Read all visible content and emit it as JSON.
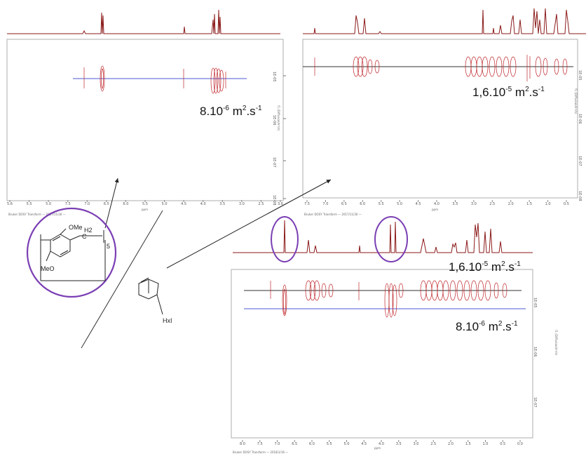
{
  "chart_data": [
    {
      "type": "2D DOSY NMR spectrum",
      "panel": "top-left",
      "xaxis": {
        "label": "ppm",
        "ticks": [
          "5.6",
          "5.5",
          "5.0",
          "7.5",
          "7.0",
          "6.5",
          "6.0",
          "5.5",
          "5.0",
          "4.5",
          "4.0",
          "3.5",
          "3.0",
          "2.5",
          "3.6"
        ]
      },
      "yaxis": {
        "label": "f1 (Diffusion/m²/s)",
        "ticks": [
          "1E-05",
          "1E-06",
          "1E-07",
          "1E-08"
        ]
      },
      "footer": "Bruker DOSY Transform — 2017/11/30 —",
      "annotation": {
        "mantissa": "8.10",
        "exp": "-6",
        "unit": " m",
        "unit_exp": "2",
        "tail": ".s",
        "tail_exp": "-1"
      }
    },
    {
      "type": "2D DOSY NMR spectrum",
      "panel": "top-right",
      "xaxis": {
        "label": "ppm",
        "ticks": [
          "7.5",
          "7.0",
          "6.5",
          "6.0",
          "5.5",
          "5.0",
          "4.5",
          "4.0",
          "3.5",
          "3.0",
          "2.5",
          "2.0",
          "1.5",
          "1.0",
          "0.5"
        ]
      },
      "yaxis": {
        "label": "f1 (Diffusion/m²/s)",
        "ticks": [
          "1E-05",
          "1E-06",
          "1E-07",
          "1E-08"
        ]
      },
      "footer": "Bruker DOSY Transform — 2017/11/30 —",
      "annotation": {
        "mantissa": "1,6.10",
        "exp": "-5",
        "unit": " m",
        "unit_exp": "2",
        "tail": ".s",
        "tail_exp": "-1"
      }
    },
    {
      "type": "2D DOSY NMR spectrum",
      "panel": "bottom-right",
      "xaxis": {
        "label": "ppm",
        "ticks": [
          "8.0",
          "7.5",
          "7.0",
          "6.5",
          "6.0",
          "5.5",
          "5.0",
          "4.5",
          "4.0",
          "3.5",
          "3.0",
          "2.5",
          "2.0",
          "1.5",
          "1.0",
          "0.5",
          "0.0"
        ]
      },
      "yaxis": {
        "label": "f1 (Diffusion/m²/s)",
        "ticks": [
          "1E-05",
          "1E-06",
          "1E-07"
        ]
      },
      "footer": "Bruker DOSY Transform — 2018/1/16 —",
      "annotations": [
        {
          "mantissa": "1,6.10",
          "exp": "-5",
          "unit": " m",
          "unit_exp": "2",
          "tail": ".s",
          "tail_exp": "-1"
        },
        {
          "mantissa": "8.10",
          "exp": "-6",
          "unit": " m",
          "unit_exp": "2",
          "tail": ".s",
          "tail_exp": "-1"
        }
      ]
    }
  ],
  "structures": {
    "pillararene": {
      "ome_top": "OMe",
      "ome_bottom": "MeO",
      "ch2": "C",
      "h2": "H2",
      "n": "5"
    },
    "guest": {
      "label": "HxI"
    }
  },
  "colors": {
    "spectrum": "#8b1a1a",
    "contour": "#c0262b",
    "blue_line": "#4b5bd6",
    "dark_line": "#333333",
    "highlight": "#7b3fb4"
  }
}
